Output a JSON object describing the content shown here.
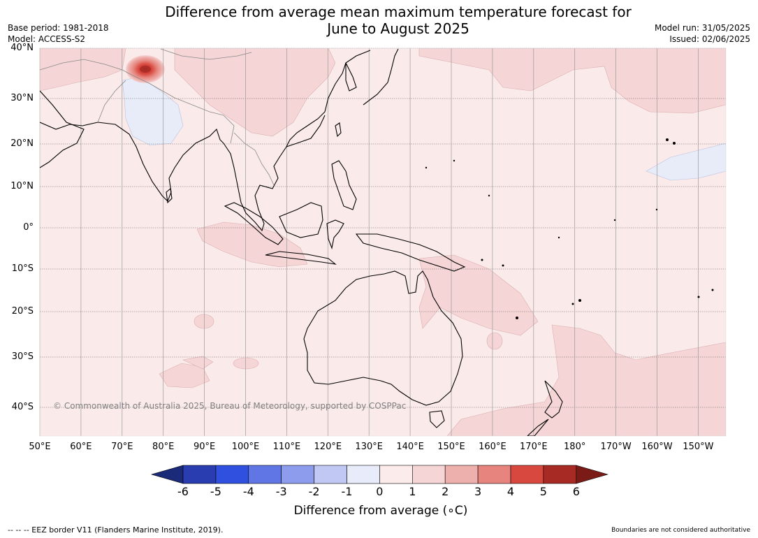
{
  "header": {
    "title_line1": "Difference from average mean maximum temperature forecast for",
    "title_line2": "June to August 2025",
    "base_period": "Base period: 1981-2018",
    "model": "Model: ACCESS-S2",
    "model_run": "Model run: 31/05/2025",
    "issued": "Issued: 02/06/2025"
  },
  "map": {
    "lat_labels": [
      "40°N",
      "30°N",
      "20°N",
      "10°N",
      "0°",
      "10°S",
      "20°S",
      "30°S",
      "40°S"
    ],
    "lon_labels": [
      "50°E",
      "60°E",
      "70°E",
      "80°E",
      "90°E",
      "100°E",
      "110°E",
      "120°E",
      "130°E",
      "140°E",
      "150°E",
      "160°E",
      "170°E",
      "180°",
      "170°W",
      "160°W",
      "150°W"
    ],
    "copyright": "© Commonwealth of Australia 2025, Bureau of Meteorology, supported by COSPPac",
    "ocean_color": "#fbeaea",
    "region_colors": {
      "below_zero": "#e8ecf8",
      "zero_to_one": "#fbeaea",
      "one_to_two": "#f5d5d5",
      "two_to_three": "#eeb0ac",
      "three_to_four": "#e6847d",
      "four_to_five": "#d9483e",
      "five_to_six": "#a82a24"
    },
    "hotspot_label": "Strong positive anomaly over northern Pakistan / Kashmir"
  },
  "colorbar": {
    "ticks": [
      "-6",
      "-5",
      "-4",
      "-3",
      "-2",
      "-1",
      "0",
      "1",
      "2",
      "3",
      "4",
      "5",
      "6"
    ],
    "colors": [
      "#1c2a7a",
      "#2a3db0",
      "#3050e0",
      "#6176e5",
      "#8d9cec",
      "#c0c8f3",
      "#e8ebfa",
      "#fcebeb",
      "#f5d5d5",
      "#eeb0ac",
      "#e6847d",
      "#d9483e",
      "#a82a24",
      "#7a1b17"
    ],
    "label": "Difference from average (∘C)"
  },
  "footer": {
    "eez_note": "-- -- -- EEZ border V11 (Flanders Marine Institute, 2019).",
    "boundaries_note": "Boundaries are not considered authoritative"
  }
}
